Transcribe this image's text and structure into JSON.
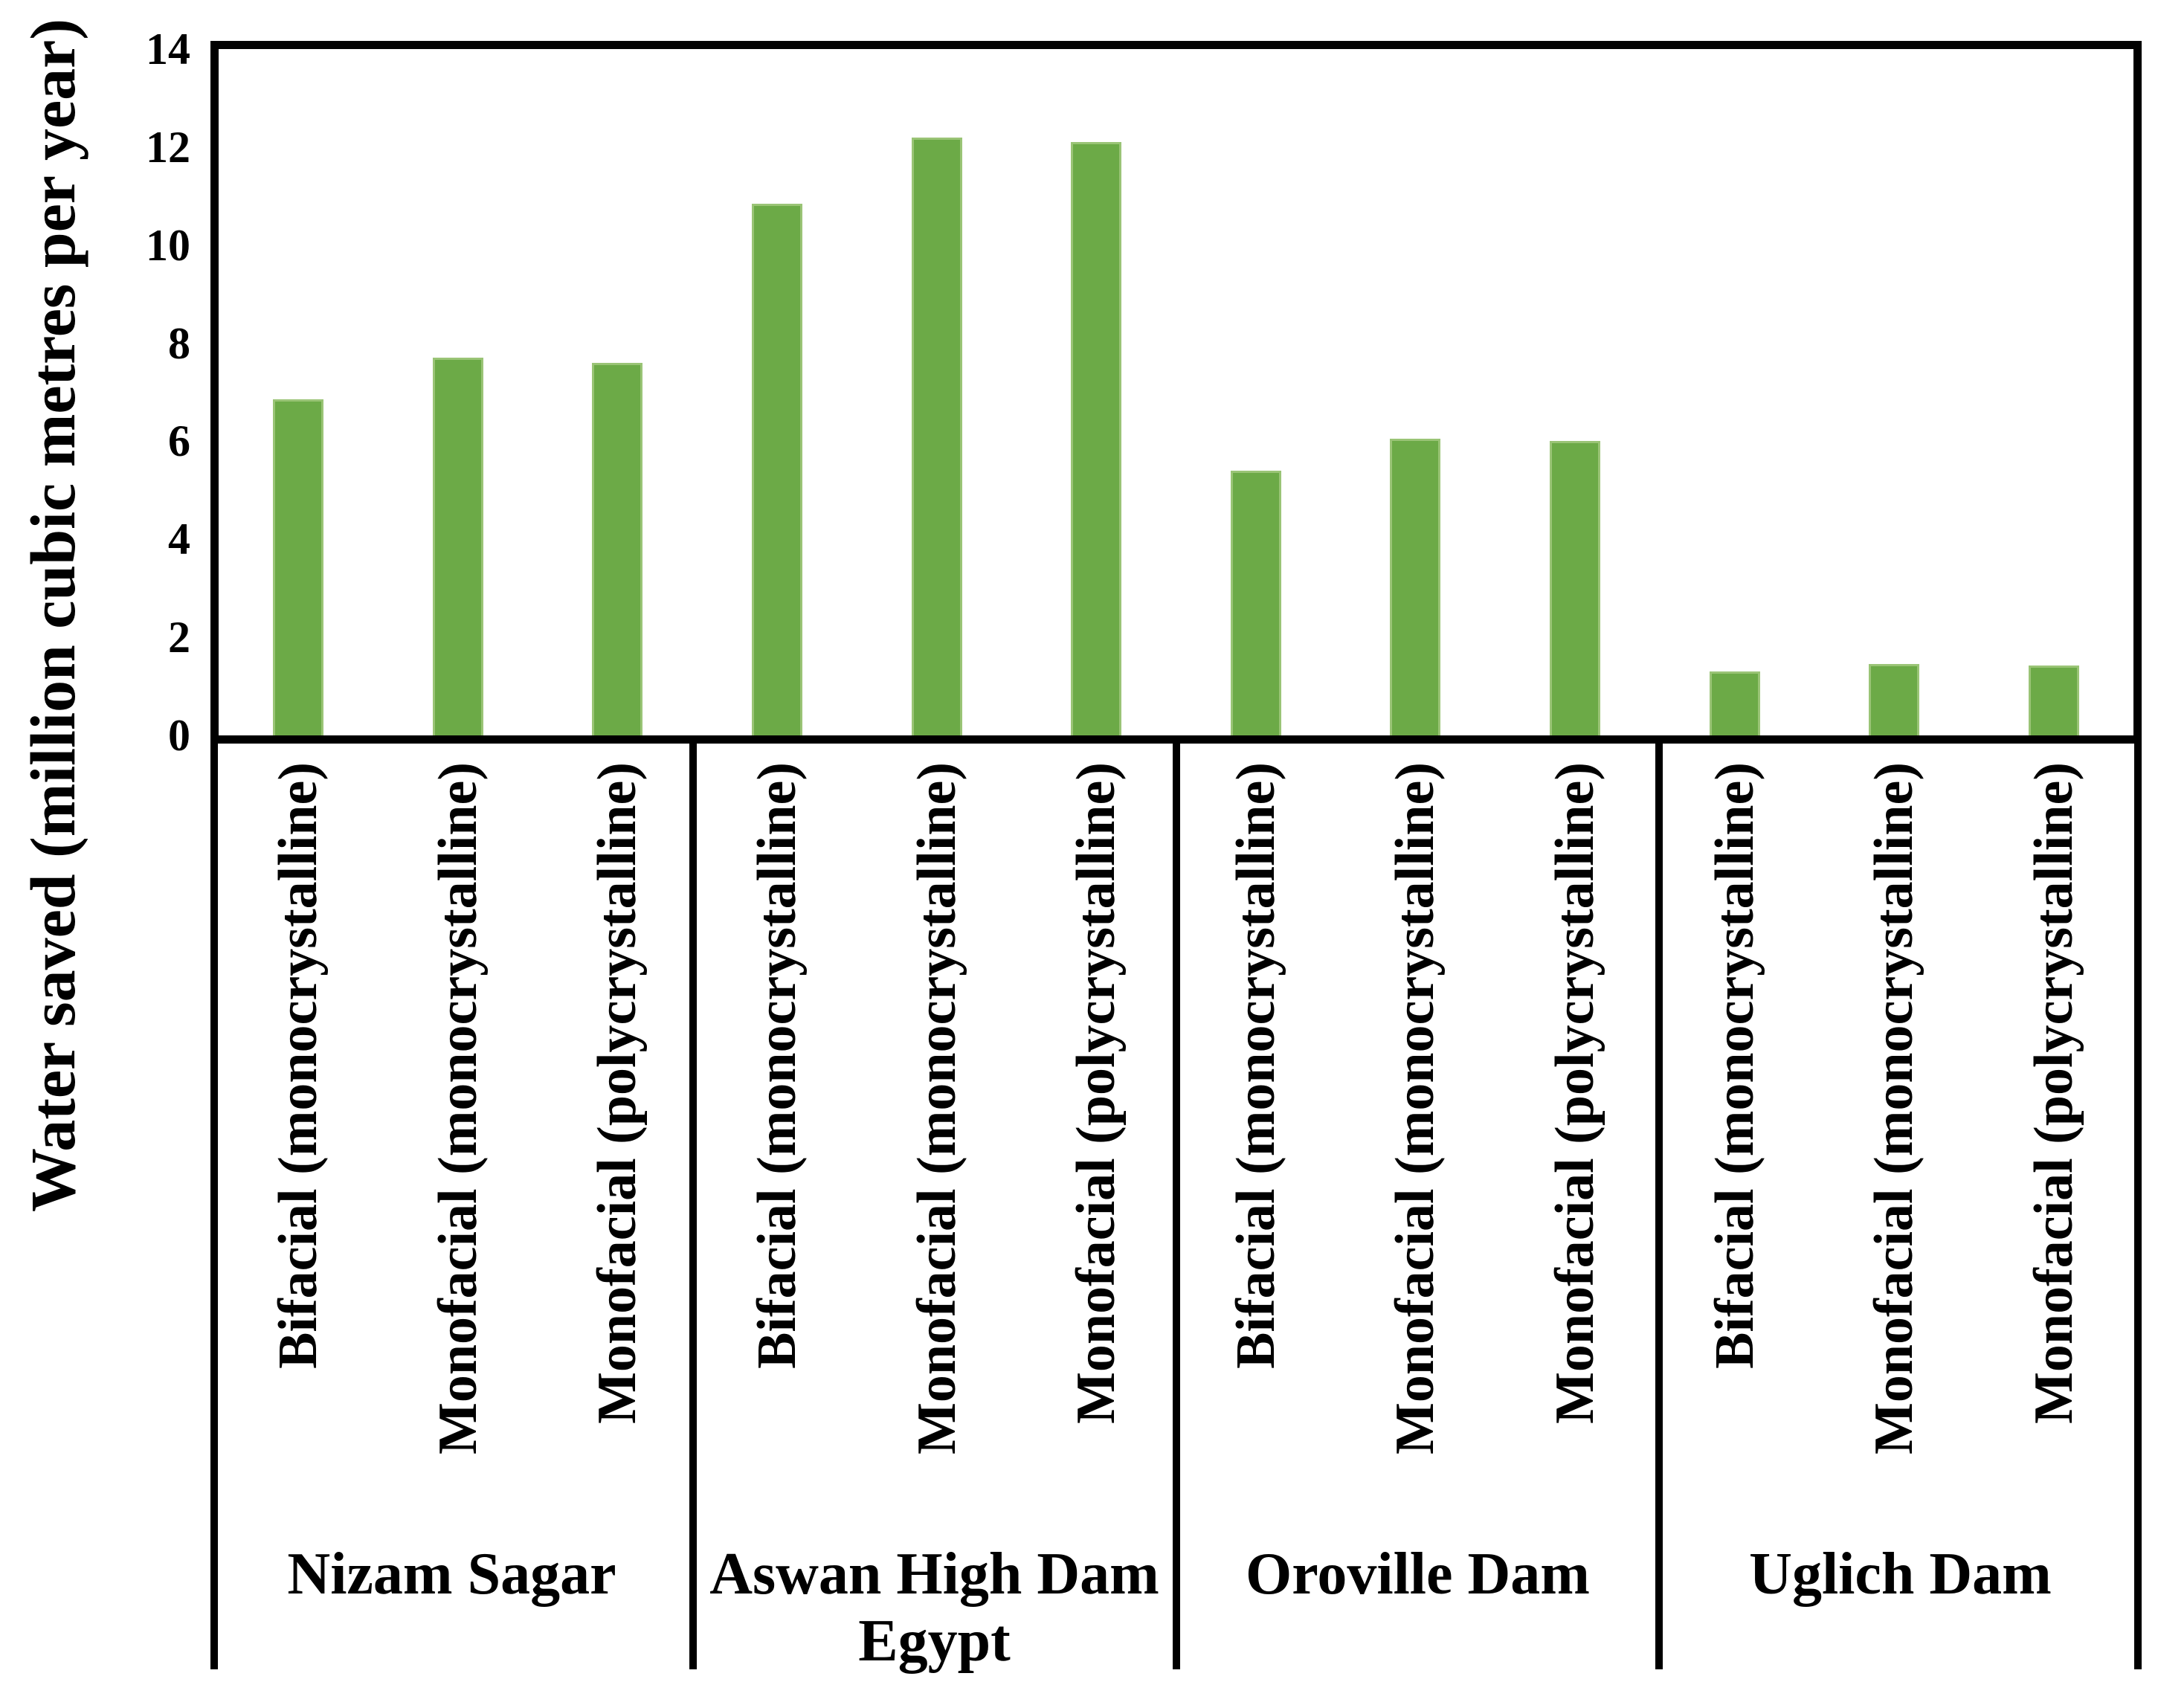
{
  "chart_data": {
    "type": "bar",
    "title": "",
    "xlabel": "",
    "ylabel": "Water saved (million cubic metres per year)",
    "ylim": [
      0,
      14
    ],
    "ytick_step": 2,
    "yticks": [
      14,
      12,
      10,
      8,
      6,
      4,
      2,
      0
    ],
    "grid": false,
    "legend": "none",
    "bar_color": "#6CAA47",
    "bar_edge_color": "#9AC476",
    "axis_color": "#000000",
    "groups": [
      {
        "label": "Nizam Sagar",
        "bars": [
          {
            "label": "Bifacial (monocrystalline)",
            "value": 6.85
          },
          {
            "label": "Monofacial (monocrystalline)",
            "value": 7.7
          },
          {
            "label": "Monofacial (polycrystalline)",
            "value": 7.6
          }
        ]
      },
      {
        "label": "Aswan High Dam Egypt",
        "bars": [
          {
            "label": "Bifacial (monocrystalline)",
            "value": 10.85
          },
          {
            "label": "Monofacial (monocrystalline)",
            "value": 12.2
          },
          {
            "label": "Monofacial (polycrystalline)",
            "value": 12.1
          }
        ]
      },
      {
        "label": "Oroville Dam",
        "bars": [
          {
            "label": "Bifacial (monocrystalline)",
            "value": 5.4
          },
          {
            "label": "Monofacial (monocrystalline)",
            "value": 6.05
          },
          {
            "label": "Monofacial (polycrystalline)",
            "value": 6.0
          }
        ]
      },
      {
        "label": "Uglich Dam",
        "bars": [
          {
            "label": "Bifacial (monocrystalline)",
            "value": 1.3
          },
          {
            "label": "Monofacial (monocrystalline)",
            "value": 1.45
          },
          {
            "label": "Monofacial (polycrystalline)",
            "value": 1.42
          }
        ]
      }
    ]
  }
}
